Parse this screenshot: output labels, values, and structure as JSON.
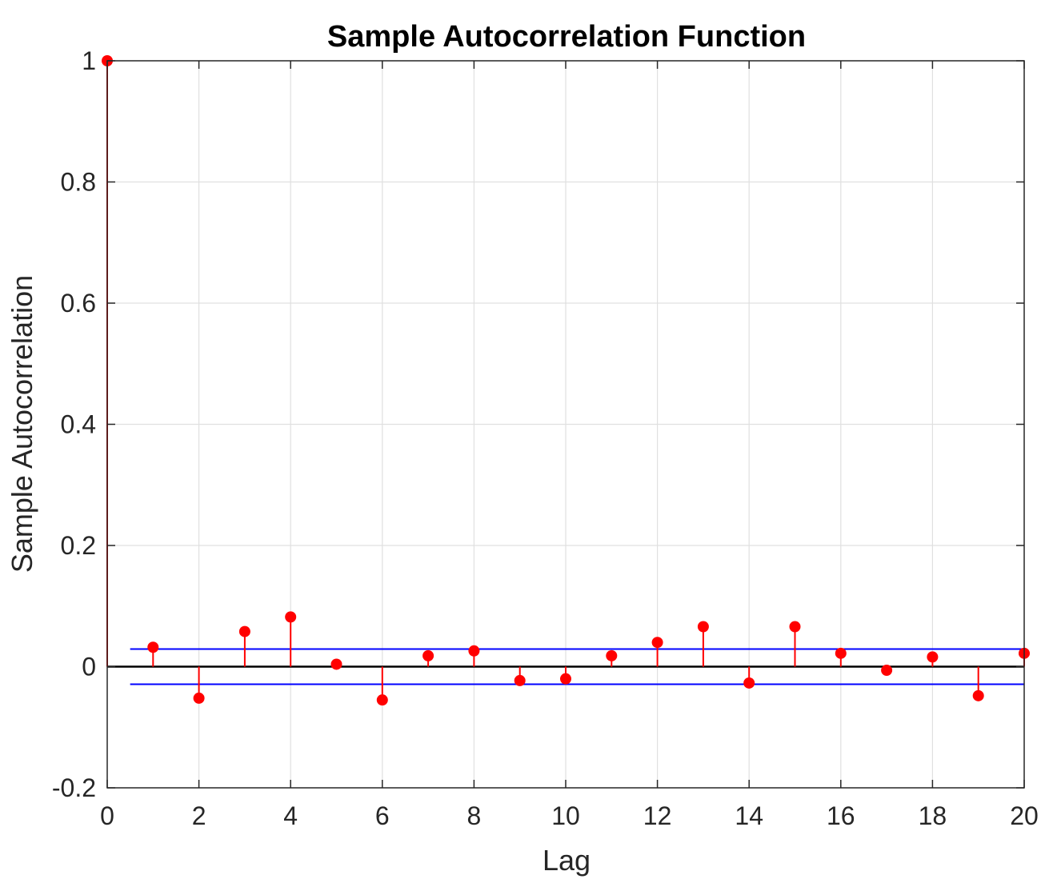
{
  "chart_data": {
    "type": "stem",
    "title": "Sample Autocorrelation Function",
    "xlabel": "Lag",
    "ylabel": "Sample Autocorrelation",
    "xlim": [
      0,
      20
    ],
    "ylim": [
      -0.2,
      1
    ],
    "xticks": [
      0,
      2,
      4,
      6,
      8,
      10,
      12,
      14,
      16,
      18,
      20
    ],
    "yticks": [
      -0.2,
      0,
      0.2,
      0.4,
      0.6,
      0.8,
      1
    ],
    "xtick_labels": [
      "0",
      "2",
      "4",
      "6",
      "8",
      "10",
      "12",
      "14",
      "16",
      "18",
      "20"
    ],
    "ytick_labels": [
      "-0.2",
      "0",
      "0.2",
      "0.4",
      "0.6",
      "0.8",
      "1"
    ],
    "grid": true,
    "series": [
      {
        "lags": [
          0,
          1,
          2,
          3,
          4,
          5,
          6,
          7,
          8,
          9,
          10,
          11,
          12,
          13,
          14,
          15,
          16,
          17,
          18,
          19,
          20
        ],
        "values": [
          1,
          0.032,
          -0.052,
          0.058,
          0.082,
          0.004,
          -0.055,
          0.018,
          0.026,
          -0.023,
          -0.02,
          0.018,
          0.04,
          0.066,
          -0.027,
          0.066,
          0.022,
          -0.006,
          0.016,
          -0.048,
          0.022
        ],
        "color": "#ff0000"
      }
    ],
    "confidence_bounds": {
      "upper": 0.029,
      "lower": -0.029,
      "x_range": [
        0.5,
        20
      ],
      "color": "#0000ff"
    },
    "zero_line_color": "#000000"
  },
  "colors": {
    "stem": "#ff0000",
    "bounds": "#0000ff",
    "axis": "#262626",
    "grid": "#e0e0e0"
  }
}
